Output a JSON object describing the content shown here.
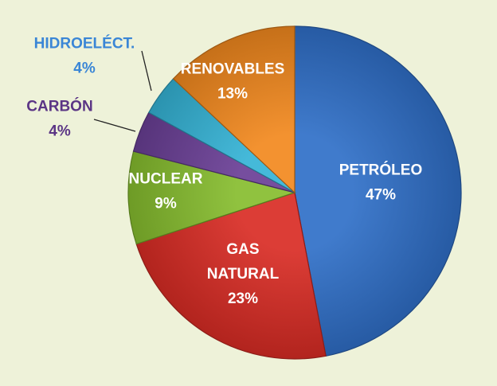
{
  "colors": {
    "background": "#eef2d9",
    "inside_label": "#ffffff"
  },
  "chart_data": {
    "type": "pie",
    "title": "",
    "start_angle_deg": 0,
    "direction": "clockwise",
    "slices": [
      {
        "label_lines": [
          "PETRÓLEO"
        ],
        "value": 47,
        "display": "47%",
        "color": "#2f6fc8",
        "label_position": "inside",
        "label_color": "#ffffff"
      },
      {
        "label_lines": [
          "GAS",
          "NATURAL"
        ],
        "value": 23,
        "display": "23%",
        "color": "#d92c25",
        "label_position": "inside",
        "label_color": "#ffffff"
      },
      {
        "label_lines": [
          "NUCLEAR"
        ],
        "value": 9,
        "display": "9%",
        "color": "#86bd2e",
        "label_position": "inside",
        "label_color": "#ffffff"
      },
      {
        "label_lines": [
          "CARBÓN"
        ],
        "value": 4,
        "display": "4%",
        "color": "#6a3f96",
        "label_position": "outside",
        "label_color": "#5b3585"
      },
      {
        "label_lines": [
          "HIDROELÉCT."
        ],
        "value": 4,
        "display": "4%",
        "color": "#35b3d6",
        "label_position": "outside",
        "label_color": "#3a86d6"
      },
      {
        "label_lines": [
          "RENOVABLES"
        ],
        "value": 13,
        "display": "13%",
        "color": "#f2891e",
        "label_position": "inside",
        "label_color": "#ffffff"
      }
    ]
  }
}
